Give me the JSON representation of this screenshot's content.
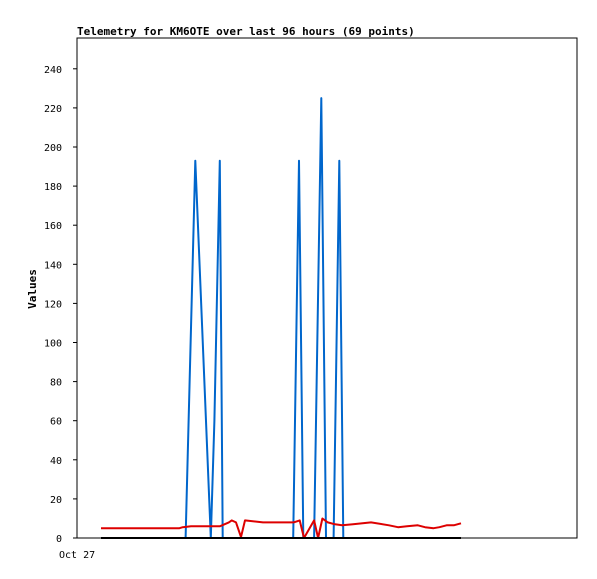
{
  "chart_data": {
    "type": "line",
    "title": "Telemetry for KM6OTE over last 96 hours (69 points)",
    "xlabel": "",
    "ylabel": "Values",
    "x_tick_labels": [
      "Oct 27"
    ],
    "y_ticks": [
      0,
      20,
      40,
      60,
      80,
      100,
      120,
      140,
      160,
      180,
      200,
      220,
      240
    ],
    "ylim": [
      0,
      255
    ],
    "xlim": [
      0,
      100
    ],
    "grid": false,
    "legend": "none",
    "series": [
      {
        "color": "#0066cc",
        "x": [
          0,
          23.5,
          26.2,
          30.5,
          31.5,
          33.0,
          33.8,
          37.9,
          53.4,
          55.0,
          56.2,
          59.2,
          61.2,
          62.5,
          64.6,
          66.2,
          67.3,
          74.8,
          100
        ],
        "y": [
          0,
          0,
          193,
          0,
          60,
          193,
          0,
          0,
          0,
          193,
          0,
          0,
          225,
          0,
          0,
          193,
          0,
          0,
          0
        ]
      },
      {
        "color": "#dd0000",
        "x": [
          0,
          10,
          20,
          21.8,
          22.7,
          25,
          30,
          33,
          35.5,
          36.3,
          37.5,
          38.9,
          40,
          45,
          50,
          53.5,
          55.2,
          56.4,
          59.2,
          60.3,
          61.5,
          63,
          65,
          67,
          70,
          75,
          80,
          82.5,
          85,
          88,
          90,
          92.4,
          94,
          96,
          98,
          100
        ],
        "y": [
          5,
          5,
          5,
          5,
          5.5,
          6,
          6,
          6,
          8,
          9,
          8,
          0.5,
          9,
          8,
          8,
          8,
          9,
          0,
          9,
          0,
          10,
          8,
          7,
          6.5,
          7,
          8,
          6.5,
          5.5,
          6,
          6.5,
          5.5,
          5,
          5.5,
          6.5,
          6.5,
          7.5
        ]
      },
      {
        "color": "#000000",
        "x": [
          0,
          100
        ],
        "y": [
          0,
          0
        ]
      }
    ]
  }
}
